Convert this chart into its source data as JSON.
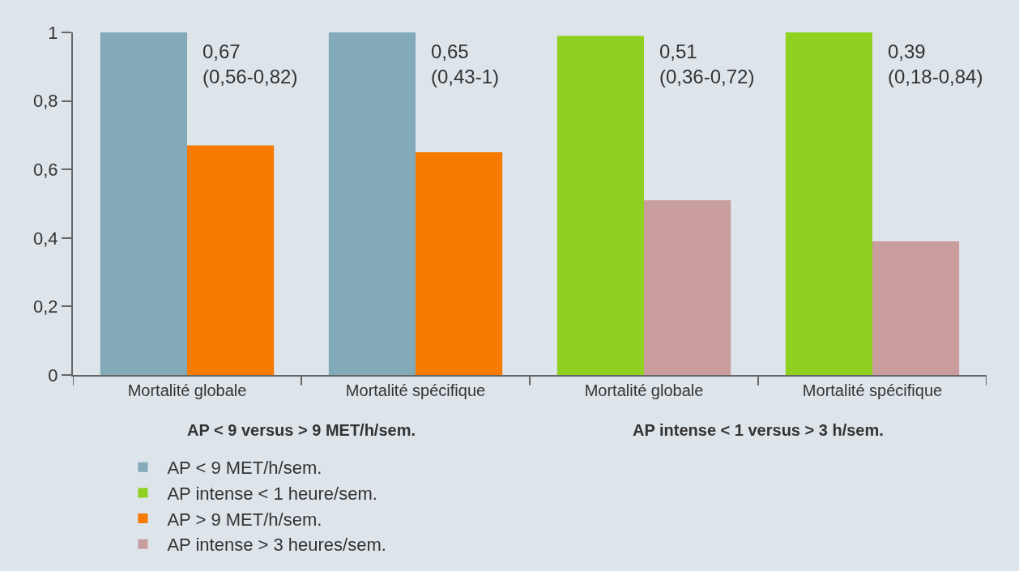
{
  "chart_data": {
    "type": "bar",
    "categories": [
      "Mortalité globale",
      "Mortalité spécifique",
      "Mortalité globale",
      "Mortalité spécifique"
    ],
    "series": [
      {
        "name": "AP < 9 MET/h/sem.",
        "color": "#82aab9",
        "values": [
          1,
          1,
          null,
          null
        ]
      },
      {
        "name": "AP > 9 MET/h/sem.",
        "color": "#f77b00",
        "values": [
          0.67,
          0.65,
          null,
          null
        ]
      },
      {
        "name": "AP intense < 1 heure/sem.",
        "color": "#8fd020",
        "values": [
          null,
          null,
          0.99,
          1
        ]
      },
      {
        "name": "AP intense > 3 heures/sem.",
        "color": "#c99c9e",
        "values": [
          null,
          null,
          0.51,
          0.39
        ]
      }
    ],
    "ylim": [
      0,
      1
    ],
    "yticks": [
      0,
      {
        "value": 0.2,
        "label": "0,2"
      },
      {
        "value": 0.4,
        "label": "0,4"
      },
      {
        "value": 0.6,
        "label": "0,6"
      },
      {
        "value": 0.8,
        "label": "0,8"
      },
      1
    ],
    "annotations": [
      "0,67\n(0,56-0,82)",
      "0,65\n(0,43-1)",
      "0,51\n(0,36-0,72)",
      "0,39\n(0,18-0,84)",
      "AP < 9 versus > 9 MET/h/sem.",
      "AP intense < 1 versus > 3 h/sem."
    ],
    "grid": false,
    "legend": "bottom"
  }
}
